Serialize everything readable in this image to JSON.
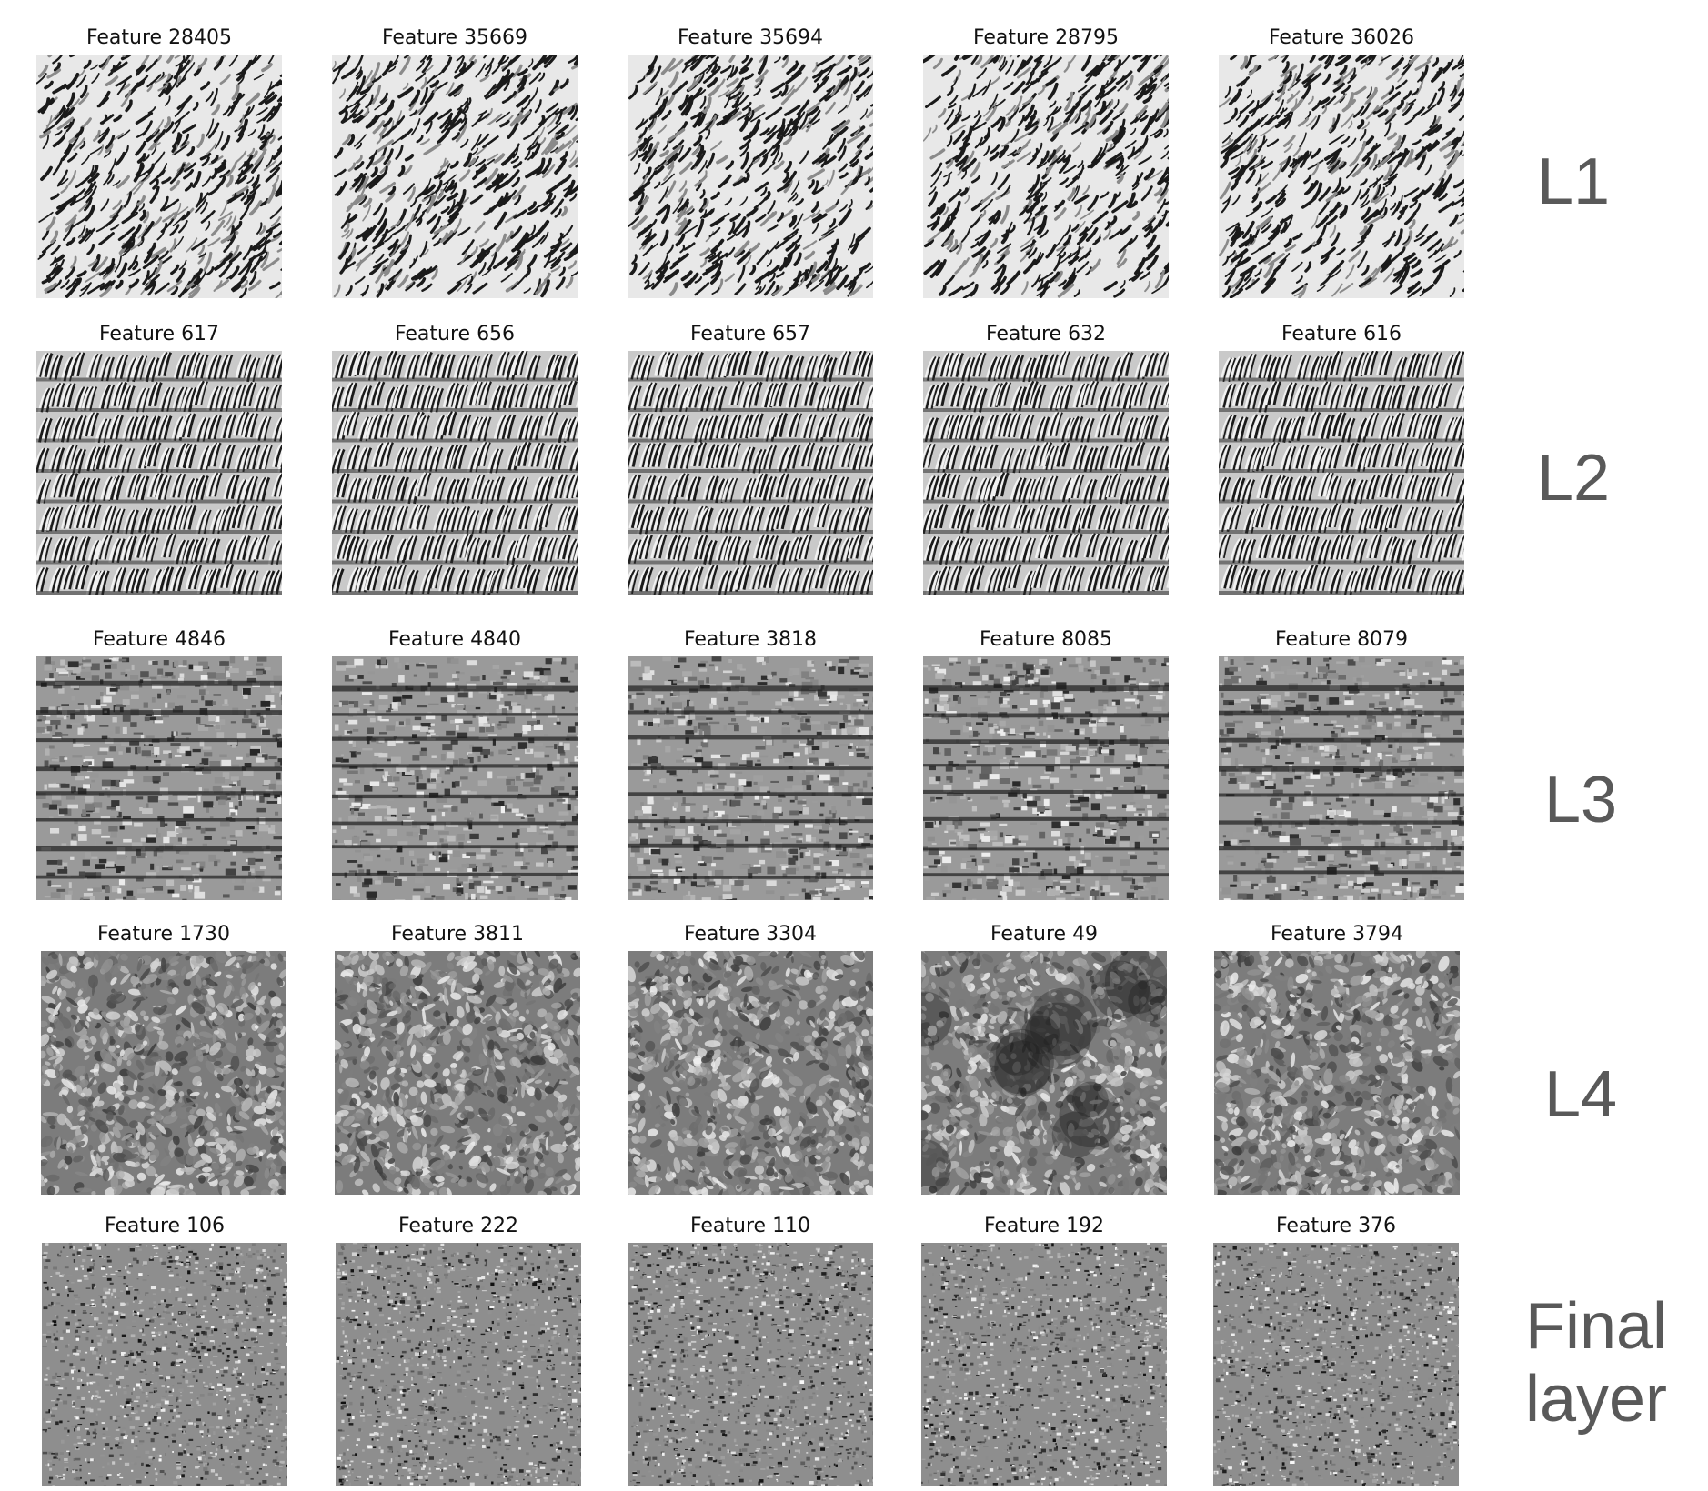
{
  "rows": [
    {
      "layer_label": [
        "L1"
      ],
      "pattern": "dense-stripes",
      "features": [
        "Feature 28405",
        "Feature 35669",
        "Feature 35694",
        "Feature 28795",
        "Feature 36026"
      ]
    },
    {
      "layer_label": [
        "L2"
      ],
      "pattern": "scaled-bands",
      "features": [
        "Feature 617",
        "Feature 656",
        "Feature 657",
        "Feature 632",
        "Feature 616"
      ]
    },
    {
      "layer_label": [
        "L3"
      ],
      "pattern": "brick-rows",
      "features": [
        "Feature 4846",
        "Feature 4840",
        "Feature 3818",
        "Feature 8085",
        "Feature 8079"
      ]
    },
    {
      "layer_label": [
        "L4"
      ],
      "pattern": "soft-noise",
      "features": [
        "Feature 1730",
        "Feature 3811",
        "Feature 3304",
        "Feature 49",
        "Feature 3794"
      ]
    },
    {
      "layer_label": [
        "Final",
        "layer"
      ],
      "pattern": "fine-noise",
      "features": [
        "Feature 106",
        "Feature 222",
        "Feature 110",
        "Feature 192",
        "Feature 376"
      ]
    }
  ],
  "colors": {
    "title_text": "#111111",
    "layer_label_text": "#595959",
    "tile_dark": "#1a1a1a",
    "tile_light": "#e8e8e8",
    "tile_mid": "#8a8a8a"
  }
}
